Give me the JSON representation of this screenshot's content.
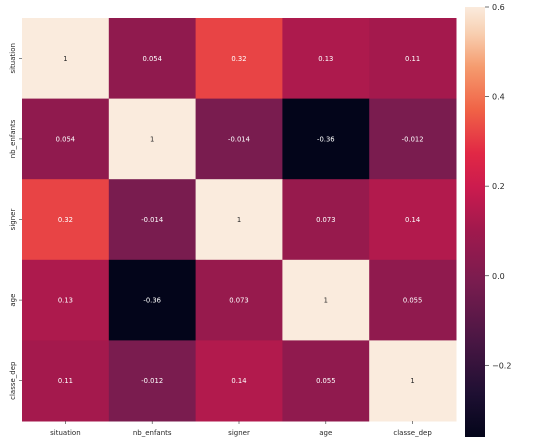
{
  "chart_data": {
    "type": "heatmap",
    "title": "",
    "xlabel": "",
    "ylabel": "",
    "x_categories": [
      "situation",
      "nb_enfants",
      "signer",
      "age",
      "classe_dep"
    ],
    "y_categories": [
      "situation",
      "nb_enfants",
      "signer",
      "age",
      "classe_dep"
    ],
    "values": [
      [
        1,
        0.054,
        0.32,
        0.13,
        0.11
      ],
      [
        0.054,
        1,
        -0.014,
        -0.36,
        -0.012
      ],
      [
        0.32,
        -0.014,
        1,
        0.073,
        0.14
      ],
      [
        0.13,
        -0.36,
        0.073,
        1,
        0.055
      ],
      [
        0.11,
        -0.012,
        0.14,
        0.055,
        1
      ]
    ],
    "value_labels": [
      [
        "1",
        "0.054",
        "0.32",
        "0.13",
        "0.11"
      ],
      [
        "0.054",
        "1",
        "-0.014",
        "-0.36",
        "-0.012"
      ],
      [
        "0.32",
        "-0.014",
        "1",
        "0.073",
        "0.14"
      ],
      [
        "0.13",
        "-0.36",
        "0.073",
        "1",
        "0.055"
      ],
      [
        "0.11",
        "-0.012",
        "0.14",
        "0.055",
        "1"
      ]
    ],
    "colorbar": {
      "vmin": -0.36,
      "vmax": 0.6,
      "ticks": [
        -0.2,
        0.0,
        0.2,
        0.4,
        0.6
      ],
      "tick_labels": [
        "−0.2",
        "0.0",
        "0.2",
        "0.4",
        "0.6"
      ],
      "colormap": "rocket"
    },
    "grid": false,
    "legend": "colorbar-right"
  }
}
